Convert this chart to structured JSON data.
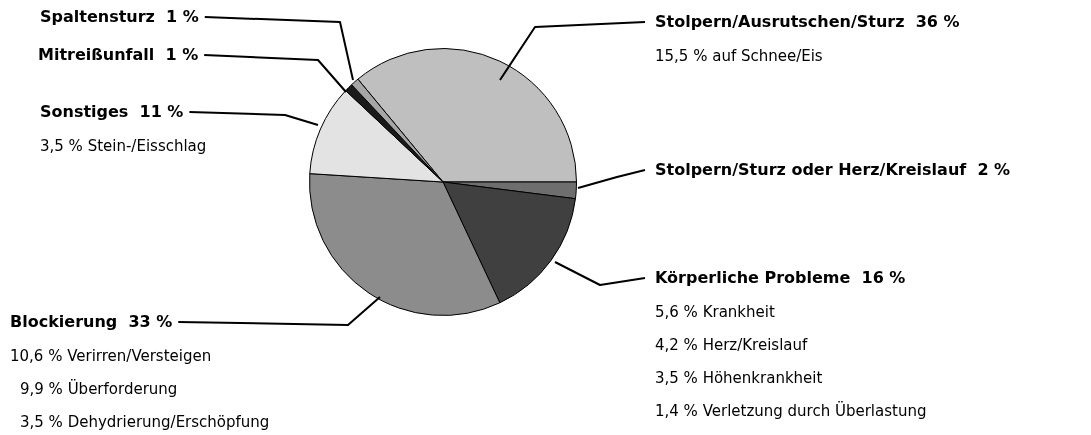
{
  "chart_data": {
    "type": "pie",
    "categories": [
      "Stolpern/Ausrutschen/Sturz",
      "Stolpern/Sturz oder Herz/Kreislauf",
      "Körperliche Probleme",
      "Blockierung",
      "Sonstiges",
      "Mitreißunfall",
      "Spaltensturz"
    ],
    "values": [
      36,
      2,
      16,
      33,
      11,
      1,
      1
    ],
    "value_labels": [
      "36 %",
      "2 %",
      "16 %",
      "33 %",
      "11 %",
      "1 %",
      "1 %"
    ],
    "colors": [
      "#bfbfbf",
      "#6e6e6e",
      "#404040",
      "#8c8c8c",
      "#e3e3e3",
      "#1a1a1a",
      "#a6a6a6"
    ],
    "annotations": [
      "15,5 % auf Schnee/Eis",
      "5,6 % Krankheit",
      "4,2 % Herz/Kreislauf",
      "3,5 % Höhenkrankheit",
      "1,4 % Verletzung durch Überlastung",
      "10,6 % Verirren/Versteigen",
      "9,9 % Überforderung",
      "3,5 % Dehydrierung/Erschöpfung",
      "3,5 % Stein-/Eisschlag"
    ],
    "legend": false
  }
}
